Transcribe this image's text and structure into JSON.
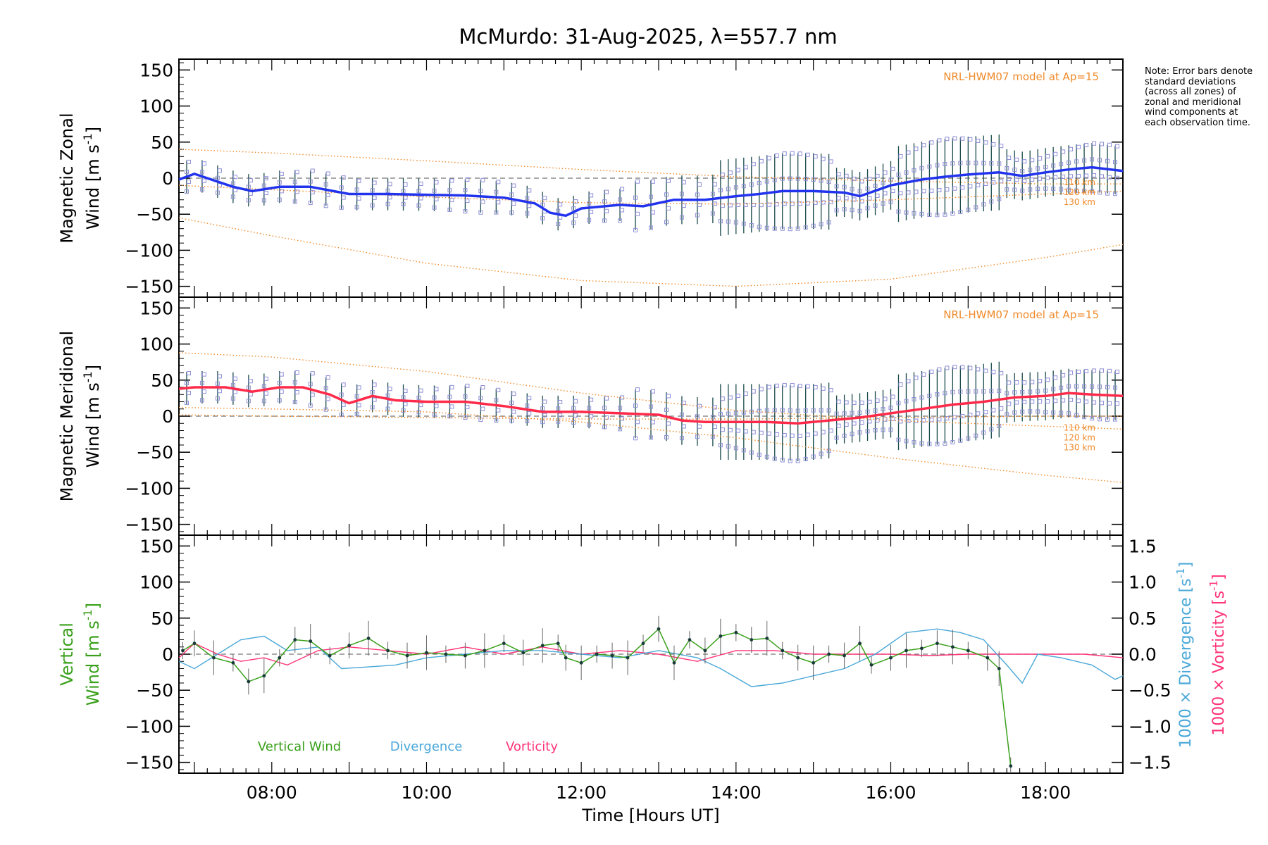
{
  "title": "McMurdo: 31-Aug-2025, λ=557.7 nm",
  "note": "Note: Error bars denote standard deviations (across all zones) of zonal and meridional wind components at each observation time.",
  "xlabel": "Time [Hours UT]",
  "colors": {
    "zonal": "#2233ee",
    "meridional": "#ff2a4a",
    "vertical": "#3aa01c",
    "divergence": "#4aa8d8",
    "vorticity": "#ff3377",
    "model": "#f08a2a",
    "samples": "#8f8fd8",
    "errorbar": "#1a4a4a"
  },
  "chart_data": [
    {
      "type": "line",
      "panel": "zonal",
      "ylabel_line1": "Magnetic Zonal",
      "ylabel_line2": "Wind [m s",
      "ylabel_sup": "-1",
      "ylabel_end": "]",
      "model_label": "NRL-HWM07 model at Ap=15",
      "model_heights": [
        "110 km",
        "120 km",
        "130 km"
      ],
      "xlim": [
        6.8,
        19.0
      ],
      "ylim": [
        -165,
        165
      ],
      "yticks": [
        150,
        100,
        50,
        0,
        -50,
        -100,
        -150
      ],
      "series": [
        {
          "name": "Zonal wind",
          "x": [
            6.8,
            7.0,
            7.5,
            7.75,
            8.1,
            8.5,
            9.0,
            9.5,
            10.0,
            10.5,
            11.0,
            11.4,
            11.6,
            11.8,
            12.0,
            12.5,
            12.8,
            13.2,
            13.6,
            14.0,
            14.3,
            14.6,
            15.0,
            15.4,
            15.6,
            16.0,
            16.4,
            16.7,
            17.0,
            17.4,
            17.7,
            18.0,
            18.3,
            18.6,
            19.0
          ],
          "y": [
            -2,
            6,
            -12,
            -18,
            -12,
            -12,
            -22,
            -22,
            -23,
            -24,
            -27,
            -35,
            -48,
            -52,
            -42,
            -37,
            -39,
            -30,
            -30,
            -25,
            -22,
            -18,
            -18,
            -20,
            -25,
            -10,
            -2,
            2,
            5,
            8,
            3,
            8,
            12,
            15,
            10
          ]
        },
        {
          "name": "NRL-HWM07 110 km",
          "x": [
            6.8,
            8.0,
            10.0,
            12.0,
            14.0,
            16.0,
            18.0,
            19.0
          ],
          "y": [
            40,
            35,
            24,
            12,
            2,
            -4,
            -8,
            -8
          ]
        },
        {
          "name": "NRL-HWM07 120 km",
          "x": [
            6.8,
            8.0,
            10.0,
            12.0,
            14.0,
            16.0,
            18.0,
            19.0
          ],
          "y": [
            -10,
            -16,
            -26,
            -34,
            -36,
            -30,
            -22,
            -18
          ]
        },
        {
          "name": "NRL-HWM07 130 km",
          "x": [
            6.8,
            8.0,
            10.0,
            12.0,
            14.0,
            16.0,
            18.0,
            19.0
          ],
          "y": [
            -55,
            -80,
            -118,
            -142,
            -150,
            -140,
            -110,
            -92
          ]
        }
      ]
    },
    {
      "type": "line",
      "panel": "meridional",
      "ylabel_line1": "Magnetic Meridional",
      "ylabel_line2": "Wind [m s",
      "ylabel_sup": "-1",
      "ylabel_end": "]",
      "model_label": "NRL-HWM07 model at Ap=15",
      "model_heights": [
        "110 km",
        "120 km",
        "130 km"
      ],
      "xlim": [
        6.8,
        19.0
      ],
      "ylim": [
        -165,
        165
      ],
      "yticks": [
        150,
        100,
        50,
        0,
        -50,
        -100,
        -150
      ],
      "series": [
        {
          "name": "Meridional wind",
          "x": [
            6.8,
            7.0,
            7.4,
            7.75,
            8.1,
            8.4,
            8.75,
            9.0,
            9.3,
            9.6,
            10.0,
            10.5,
            11.0,
            11.5,
            12.0,
            12.5,
            13.0,
            13.3,
            13.6,
            14.0,
            14.4,
            14.8,
            15.2,
            15.6,
            16.0,
            16.4,
            16.8,
            17.2,
            17.6,
            18.0,
            18.3,
            18.6,
            19.0
          ],
          "y": [
            38,
            40,
            40,
            34,
            40,
            40,
            30,
            18,
            28,
            22,
            20,
            20,
            14,
            6,
            6,
            4,
            2,
            -6,
            -8,
            -8,
            -8,
            -10,
            -6,
            -2,
            4,
            10,
            16,
            20,
            26,
            28,
            32,
            30,
            28
          ]
        },
        {
          "name": "NRL-HWM07 110 km",
          "x": [
            6.8,
            8.0,
            10.0,
            12.0,
            14.0,
            16.0,
            18.0,
            19.0
          ],
          "y": [
            88,
            82,
            62,
            32,
            8,
            -6,
            -14,
            -18
          ]
        },
        {
          "name": "NRL-HWM07 120 km",
          "x": [
            6.8,
            8.0,
            10.0,
            12.0,
            14.0,
            16.0,
            18.0,
            19.0
          ],
          "y": [
            2,
            0,
            -2,
            -4,
            -4,
            -2,
            0,
            0
          ]
        },
        {
          "name": "NRL-HWM07 130 km",
          "x": [
            6.8,
            8.0,
            10.0,
            12.0,
            14.0,
            16.0,
            18.0,
            19.0
          ],
          "y": [
            12,
            10,
            6,
            -8,
            -30,
            -58,
            -82,
            -92
          ]
        }
      ]
    },
    {
      "type": "line",
      "panel": "vertical",
      "ylabel_line1": "Vertical",
      "ylabel_line2": "Wind [m s",
      "ylabel_sup": "-1",
      "ylabel_end": "]",
      "y2label_div": "1000 × Divergence [s",
      "y2label_vort": "1000 × Vorticity [s",
      "xlim": [
        6.8,
        19.0
      ],
      "ylim": [
        -165,
        165
      ],
      "yticks": [
        150,
        100,
        50,
        0,
        -50,
        -100,
        -150
      ],
      "y2lim": [
        -1.65,
        1.65
      ],
      "y2ticks": [
        "1.5",
        "1.0",
        "0.5",
        "0.0",
        "−0.5",
        "−1.0",
        "−1.5"
      ],
      "xticks": [
        "08:00",
        "10:00",
        "12:00",
        "14:00",
        "16:00",
        "18:00"
      ],
      "legend": [
        "Vertical Wind",
        "Divergence",
        "Vorticity"
      ],
      "series": [
        {
          "name": "Vertical Wind",
          "x": [
            6.85,
            7.0,
            7.25,
            7.5,
            7.7,
            7.9,
            8.1,
            8.3,
            8.5,
            8.75,
            9.0,
            9.25,
            9.5,
            9.75,
            10.0,
            10.25,
            10.5,
            10.75,
            11.0,
            11.25,
            11.5,
            11.7,
            11.8,
            12.0,
            12.2,
            12.4,
            12.6,
            12.8,
            13.0,
            13.2,
            13.4,
            13.6,
            13.8,
            14.0,
            14.2,
            14.4,
            14.6,
            14.8,
            15.0,
            15.2,
            15.4,
            15.6,
            15.75,
            16.0,
            16.2,
            16.4,
            16.6,
            16.8,
            17.0,
            17.25,
            17.4,
            17.55
          ],
          "y": [
            5,
            15,
            -5,
            -12,
            -38,
            -30,
            -5,
            20,
            18,
            -2,
            12,
            22,
            5,
            -2,
            2,
            0,
            -2,
            5,
            15,
            2,
            12,
            15,
            -5,
            -12,
            0,
            -2,
            -5,
            15,
            35,
            -12,
            20,
            5,
            25,
            30,
            20,
            22,
            5,
            -5,
            -12,
            0,
            -2,
            15,
            -15,
            -5,
            5,
            8,
            15,
            10,
            5,
            -5,
            -20,
            -155
          ]
        },
        {
          "name": "Divergence",
          "x": [
            6.8,
            7.0,
            7.3,
            7.6,
            7.9,
            8.2,
            8.6,
            8.9,
            9.2,
            9.6,
            10.0,
            10.5,
            11.0,
            11.5,
            12.0,
            12.5,
            13.0,
            13.5,
            13.8,
            14.2,
            14.6,
            15.0,
            15.4,
            15.8,
            16.2,
            16.6,
            16.9,
            17.2,
            17.5,
            17.7,
            17.9,
            18.2,
            18.6,
            18.9,
            19.0
          ],
          "y": [
            -0.1,
            -0.2,
            0.0,
            0.2,
            0.25,
            0.05,
            0.1,
            -0.2,
            -0.18,
            -0.15,
            -0.05,
            0.0,
            0.05,
            0.05,
            0.0,
            -0.05,
            0.05,
            -0.05,
            -0.2,
            -0.45,
            -0.4,
            -0.3,
            -0.2,
            0.0,
            0.3,
            0.35,
            0.3,
            0.2,
            -0.15,
            -0.4,
            0.0,
            -0.05,
            -0.15,
            -0.35,
            -0.3
          ]
        },
        {
          "name": "Vorticity",
          "x": [
            6.8,
            7.0,
            7.3,
            7.6,
            7.9,
            8.2,
            8.6,
            9.0,
            9.5,
            10.0,
            10.5,
            11.0,
            11.5,
            12.0,
            12.5,
            13.0,
            13.5,
            14.0,
            14.5,
            15.0,
            15.5,
            16.0,
            16.5,
            17.0,
            17.5,
            18.0,
            18.5,
            19.0
          ],
          "y": [
            -0.05,
            0.15,
            0.0,
            -0.1,
            -0.05,
            -0.15,
            0.05,
            0.1,
            0.05,
            0.0,
            0.1,
            0.0,
            0.1,
            0.0,
            0.05,
            0.0,
            -0.1,
            0.05,
            0.05,
            0.0,
            0.0,
            0.0,
            -0.02,
            0.0,
            0.0,
            0.0,
            0.0,
            -0.05
          ]
        }
      ]
    }
  ]
}
